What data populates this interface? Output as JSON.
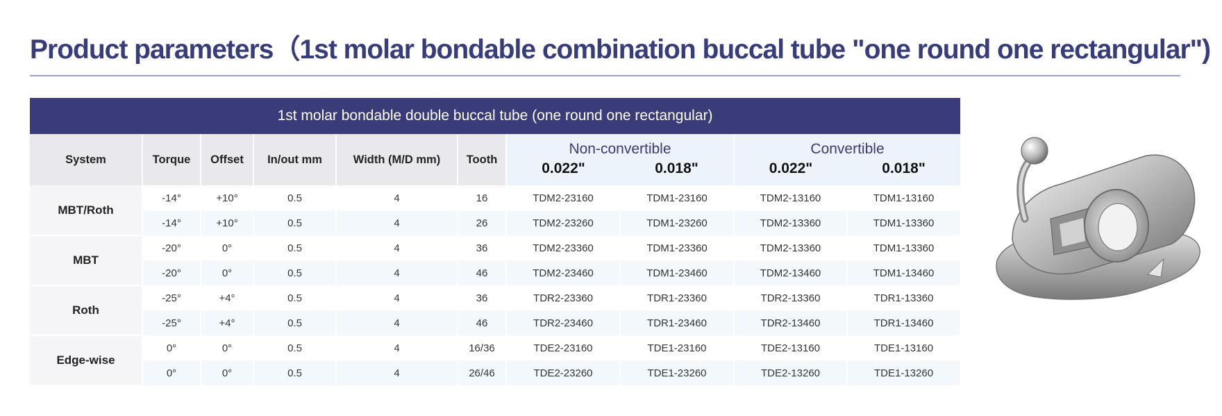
{
  "title": "Product parameters（1st molar bondable combination buccal tube \"one round one rectangular\")",
  "table": {
    "banner": "1st molar bondable double buccal tube (one round one rectangular)",
    "headers": {
      "system": "System",
      "torque": "Torque",
      "offset": "Offset",
      "inout": "In/out mm",
      "width": "Width (M/D mm)",
      "tooth": "Tooth",
      "nonconvertible": "Non-convertible",
      "convertible": "Convertible",
      "size_a": "0.022\"",
      "size_b": "0.018\""
    },
    "groups": [
      {
        "system": "MBT/Roth",
        "rows": [
          [
            "-14°",
            "+10°",
            "0.5",
            "4",
            "16",
            "TDM2-23160",
            "TDM1-23160",
            "TDM2-13160",
            "TDM1-13160"
          ],
          [
            "-14°",
            "+10°",
            "0.5",
            "4",
            "26",
            "TDM2-23260",
            "TDM1-23260",
            "TDM2-13360",
            "TDM1-13360"
          ]
        ]
      },
      {
        "system": "MBT",
        "rows": [
          [
            "-20°",
            "0°",
            "0.5",
            "4",
            "36",
            "TDM2-23360",
            "TDM1-23360",
            "TDM2-13360",
            "TDM1-13360"
          ],
          [
            "-20°",
            "0°",
            "0.5",
            "4",
            "46",
            "TDM2-23460",
            "TDM1-23460",
            "TDM2-13460",
            "TDM1-13460"
          ]
        ]
      },
      {
        "system": "Roth",
        "rows": [
          [
            "-25°",
            "+4°",
            "0.5",
            "4",
            "36",
            "TDR2-23360",
            "TDR1-23360",
            "TDR2-13360",
            "TDR1-13360"
          ],
          [
            "-25°",
            "+4°",
            "0.5",
            "4",
            "46",
            "TDR2-23460",
            "TDR1-23460",
            "TDR2-13460",
            "TDR1-13460"
          ]
        ]
      },
      {
        "system": "Edge-wise",
        "rows": [
          [
            "0°",
            "0°",
            "0.5",
            "4",
            "16/36",
            "TDE2-23160",
            "TDE1-23160",
            "TDE2-13160",
            "TDE1-13160"
          ],
          [
            "0°",
            "0°",
            "0.5",
            "4",
            "26/46",
            "TDE2-23260",
            "TDE1-23260",
            "TDE2-13260",
            "TDE1-13260"
          ]
        ]
      }
    ]
  }
}
